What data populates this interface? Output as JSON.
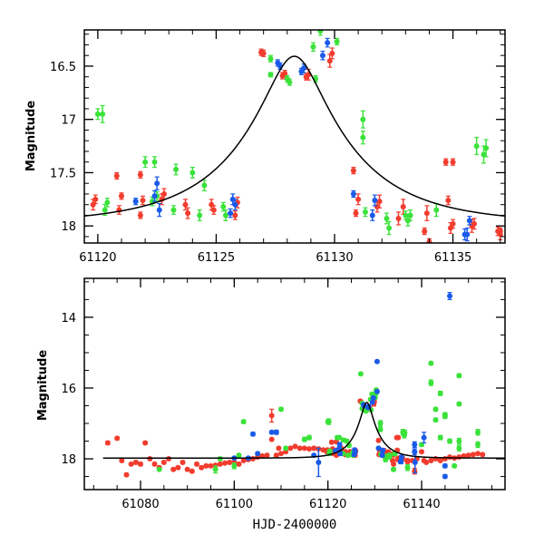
{
  "chart_data": [
    {
      "type": "scatter",
      "title": "",
      "xlabel": "",
      "ylabel": "Magnitude",
      "xlim": [
        61119.43,
        61137.2
      ],
      "ylim": [
        18.16,
        16.16
      ],
      "y_inverted": true,
      "xticks": [
        61120,
        61125,
        61130,
        61135
      ],
      "xtick_labels": [
        "61120",
        "61125",
        "61130",
        "61135"
      ],
      "yticks": [
        16.5,
        17,
        17.5,
        18
      ],
      "ytick_labels": [
        "16.5",
        "17",
        "17.5",
        "18"
      ],
      "x_minor_step": 1,
      "y_minor_step": 0.1,
      "grid": false,
      "legend": "none"
    },
    {
      "type": "scatter",
      "title": "",
      "xlabel": "HJD-2400000",
      "ylabel": "Magnitude",
      "xlim": [
        61068,
        61157.8
      ],
      "ylim": [
        18.87,
        12.9
      ],
      "y_inverted": true,
      "xticks": [
        61080,
        61100,
        61120,
        61140
      ],
      "xtick_labels": [
        "61080",
        "61100",
        "61120",
        "61140"
      ],
      "yticks": [
        14,
        16,
        18
      ],
      "ytick_labels": [
        "14",
        "16",
        "18"
      ],
      "x_minor_step": 5,
      "y_minor_step": 0.5,
      "grid": false,
      "legend": "none"
    }
  ],
  "model": {
    "name": "Paczynski fit",
    "t0": 61128.3,
    "u0": 0.24,
    "tE": 4.7,
    "baseline_mag": 17.98,
    "color": "#000000"
  },
  "series": [
    {
      "name": "red",
      "color": "#f23c2e",
      "points": [
        [
          61119.8,
          17.8,
          0.05
        ],
        [
          61119.9,
          17.75,
          0.04
        ],
        [
          61120.9,
          17.85,
          0.04
        ],
        [
          61121.0,
          17.72,
          0.03
        ],
        [
          61120.8,
          17.53,
          0.03
        ],
        [
          61121.8,
          17.9,
          0.03
        ],
        [
          61121.9,
          17.76,
          0.04
        ],
        [
          61121.8,
          17.52,
          0.03
        ],
        [
          61122.7,
          17.75,
          0.05
        ],
        [
          61122.8,
          17.7,
          0.05
        ],
        [
          61123.7,
          17.8,
          0.05
        ],
        [
          61123.8,
          17.88,
          0.05
        ],
        [
          61124.8,
          17.8,
          0.05
        ],
        [
          61124.9,
          17.85,
          0.04
        ],
        [
          61125.9,
          17.78,
          0.05
        ],
        [
          61125.8,
          17.9,
          0.04
        ],
        [
          61126.9,
          16.37,
          0.03
        ],
        [
          61127.0,
          16.38,
          0.03
        ],
        [
          61127.8,
          16.59,
          0.03
        ],
        [
          61127.9,
          16.57,
          0.03
        ],
        [
          61128.9,
          16.58,
          0.05
        ],
        [
          61128.8,
          16.6,
          0.03
        ],
        [
          61129.8,
          16.45,
          0.06
        ],
        [
          61129.9,
          16.38,
          0.05
        ],
        [
          61130.8,
          17.48,
          0.03
        ],
        [
          61130.9,
          17.88,
          0.03
        ],
        [
          61131.0,
          17.75,
          0.05
        ],
        [
          61131.8,
          17.82,
          0.05
        ],
        [
          61131.9,
          17.77,
          0.06
        ],
        [
          61132.7,
          17.93,
          0.06
        ],
        [
          61132.9,
          17.82,
          0.07
        ],
        [
          61133.8,
          18.05,
          0.03
        ],
        [
          61133.9,
          17.88,
          0.07
        ],
        [
          61134.7,
          17.4,
          0.03
        ],
        [
          61134.8,
          17.76,
          0.04
        ],
        [
          61134.9,
          18.02,
          0.05
        ],
        [
          61135.0,
          17.98,
          0.04
        ],
        [
          61135.8,
          18.0,
          0.06
        ],
        [
          61135.9,
          17.98,
          0.05
        ],
        [
          61136.9,
          18.05,
          0.04
        ],
        [
          61137.0,
          18.08,
          0.05
        ],
        [
          61073,
          17.55,
          0.05
        ],
        [
          61075,
          17.42,
          0.04
        ],
        [
          61076,
          18.05,
          0.04
        ],
        [
          61078,
          18.15,
          0.03
        ],
        [
          61077,
          18.45,
          0.04
        ],
        [
          61079,
          18.1,
          0.05
        ],
        [
          61080,
          18.15,
          0.05
        ],
        [
          61081,
          17.55,
          0.04
        ],
        [
          61082,
          18.0,
          0.03
        ],
        [
          61083,
          18.15,
          0.04
        ],
        [
          61084,
          18.25,
          0.04
        ],
        [
          61085,
          18.1,
          0.04
        ],
        [
          61086,
          18.0,
          0.03
        ],
        [
          61087,
          18.3,
          0.04
        ],
        [
          61088,
          18.25,
          0.04
        ],
        [
          61089,
          18.1,
          0.04
        ],
        [
          61090,
          18.3,
          0.04
        ],
        [
          61091,
          18.35,
          0.04
        ],
        [
          61092,
          18.15,
          0.04
        ],
        [
          61093,
          18.25,
          0.04
        ],
        [
          61094,
          18.2,
          0.03
        ],
        [
          61095,
          18.2,
          0.03
        ],
        [
          61096,
          18.18,
          0.03
        ],
        [
          61097,
          18.15,
          0.03
        ],
        [
          61098,
          18.12,
          0.03
        ],
        [
          61099,
          18.1,
          0.03
        ],
        [
          61100,
          18.1,
          0.04
        ],
        [
          61101,
          18.15,
          0.04
        ],
        [
          61102,
          18.05,
          0.03
        ],
        [
          61103,
          18.02,
          0.03
        ],
        [
          61104,
          18.0,
          0.03
        ],
        [
          61105,
          17.95,
          0.03
        ],
        [
          61106,
          17.92,
          0.03
        ],
        [
          61107,
          17.9,
          0.03
        ],
        [
          61108,
          16.78,
          0.18
        ],
        [
          61108,
          17.45,
          0.03
        ],
        [
          61109,
          17.9,
          0.03
        ],
        [
          61109.5,
          17.7,
          0.03
        ],
        [
          61110,
          17.85,
          0.03
        ],
        [
          61111,
          17.8,
          0.03
        ],
        [
          61112,
          17.7,
          0.03
        ],
        [
          61113,
          17.65,
          0.03
        ],
        [
          61114,
          17.7,
          0.03
        ],
        [
          61115,
          17.7,
          0.03
        ],
        [
          61116,
          17.72,
          0.03
        ],
        [
          61117,
          17.7,
          0.03
        ],
        [
          61118,
          17.72,
          0.03
        ],
        [
          61119,
          17.75,
          0.03
        ],
        [
          61135,
          17.4,
          0.03
        ],
        [
          61134,
          18.15,
          0.03
        ],
        [
          61138.5,
          18.35,
          0.08
        ],
        [
          61140,
          17.8,
          0.03
        ],
        [
          61137,
          18.05,
          0.03
        ],
        [
          61138,
          18.05,
          0.03
        ],
        [
          61139,
          18.0,
          0.03
        ],
        [
          61140.5,
          18.05,
          0.03
        ],
        [
          61141,
          18.1,
          0.03
        ],
        [
          61142,
          18.05,
          0.03
        ],
        [
          61143,
          18.0,
          0.03
        ],
        [
          61144,
          18.05,
          0.03
        ],
        [
          61145,
          18.0,
          0.03
        ],
        [
          61146,
          17.95,
          0.03
        ],
        [
          61147,
          17.98,
          0.03
        ],
        [
          61148,
          17.95,
          0.03
        ],
        [
          61149,
          17.92,
          0.03
        ],
        [
          61150,
          17.9,
          0.03
        ],
        [
          61151,
          17.88,
          0.03
        ],
        [
          61152,
          17.85,
          0.03
        ],
        [
          61153,
          17.88,
          0.03
        ]
      ]
    },
    {
      "name": "green",
      "color": "#3ae23a",
      "points": [
        [
          61120.2,
          16.95,
          0.08
        ],
        [
          61120.3,
          17.85,
          0.05
        ],
        [
          61120.4,
          17.78,
          0.04
        ],
        [
          61122.4,
          17.4,
          0.05
        ],
        [
          61122.3,
          17.77,
          0.04
        ],
        [
          61122.5,
          17.72,
          0.04
        ],
        [
          61123.2,
          17.85,
          0.04
        ],
        [
          61123.3,
          17.47,
          0.05
        ],
        [
          61124.3,
          17.9,
          0.05
        ],
        [
          61124.5,
          17.62,
          0.05
        ],
        [
          61125.3,
          17.82,
          0.04
        ],
        [
          61125.4,
          17.9,
          0.05
        ],
        [
          61127.3,
          16.43,
          0.03
        ],
        [
          61127.3,
          16.58,
          0.02
        ],
        [
          61128.0,
          16.62,
          0.03
        ],
        [
          61128.1,
          16.65,
          0.03
        ],
        [
          61129.2,
          16.62,
          0.03
        ],
        [
          61129.1,
          16.32,
          0.04
        ],
        [
          61129.4,
          16.17,
          0.04
        ],
        [
          61130.1,
          16.27,
          0.03
        ],
        [
          61130.3,
          16.14,
          0.02
        ],
        [
          61131.2,
          17.0,
          0.08
        ],
        [
          61131.2,
          17.17,
          0.06
        ],
        [
          61131.3,
          17.87,
          0.04
        ],
        [
          61132.2,
          17.93,
          0.05
        ],
        [
          61132.3,
          18.02,
          0.06
        ],
        [
          61133.1,
          17.95,
          0.05
        ],
        [
          61133.2,
          17.9,
          0.05
        ],
        [
          61134.3,
          17.85,
          0.06
        ],
        [
          61136.3,
          17.33,
          0.08
        ],
        [
          61136.4,
          17.27,
          0.08
        ],
        [
          61084,
          18.3,
          0.03
        ],
        [
          61096,
          18.3,
          0.1
        ],
        [
          61097,
          18.0,
          0.05
        ],
        [
          61100,
          18.2,
          0.08
        ],
        [
          61101,
          17.9,
          0.04
        ],
        [
          61102,
          16.95,
          0.05
        ],
        [
          61110,
          16.6,
          0.05
        ],
        [
          61111,
          17.7,
          0.03
        ],
        [
          61115,
          17.45,
          0.06
        ],
        [
          61116,
          17.4,
          0.06
        ],
        [
          61120,
          16.95,
          0.05
        ],
        [
          61122,
          17.4,
          0.05
        ],
        [
          61124,
          17.5,
          0.05
        ],
        [
          61127,
          15.6,
          0.03
        ],
        [
          61130.3,
          16.05,
          0.03
        ],
        [
          61133,
          17.9,
          0.04
        ],
        [
          61134,
          18.3,
          0.05
        ],
        [
          61136,
          17.25,
          0.08
        ],
        [
          61137,
          18.25,
          0.08
        ],
        [
          61140,
          17.6,
          0.05
        ],
        [
          61142,
          15.3,
          0.04
        ],
        [
          61142,
          15.85,
          0.08
        ],
        [
          61143,
          16.6,
          0.05
        ],
        [
          61143,
          16.9,
          0.05
        ],
        [
          61144,
          17.4,
          0.06
        ],
        [
          61144,
          16.15,
          0.06
        ],
        [
          61145,
          16.75,
          0.05
        ],
        [
          61145,
          16.8,
          0.06
        ],
        [
          61146,
          17.5,
          0.06
        ],
        [
          61147,
          18.2,
          0.04
        ],
        [
          61148,
          15.65,
          0.05
        ],
        [
          61148,
          16.45,
          0.05
        ],
        [
          61148,
          17.5,
          0.08
        ],
        [
          61148,
          17.7,
          0.08
        ],
        [
          61152,
          17.25,
          0.08
        ],
        [
          61152,
          17.6,
          0.08
        ]
      ]
    },
    {
      "name": "blue",
      "color": "#1a5ae8",
      "points": [
        [
          61121.6,
          17.77,
          0.03
        ],
        [
          61122.5,
          17.6,
          0.06
        ],
        [
          61122.4,
          17.72,
          0.05
        ],
        [
          61122.6,
          17.85,
          0.06
        ],
        [
          61125.6,
          17.88,
          0.04
        ],
        [
          61125.7,
          17.75,
          0.05
        ],
        [
          61125.8,
          17.8,
          0.05
        ],
        [
          61127.6,
          16.47,
          0.03
        ],
        [
          61127.7,
          16.5,
          0.03
        ],
        [
          61128.6,
          16.55,
          0.03
        ],
        [
          61128.7,
          16.52,
          0.04
        ],
        [
          61129.5,
          16.4,
          0.04
        ],
        [
          61129.7,
          16.28,
          0.04
        ],
        [
          61130.8,
          17.7,
          0.03
        ],
        [
          61131.6,
          17.9,
          0.05
        ],
        [
          61131.7,
          17.76,
          0.05
        ],
        [
          61135.6,
          18.08,
          0.06
        ],
        [
          61135.7,
          17.95,
          0.04
        ],
        [
          61135.5,
          18.08,
          0.05
        ],
        [
          61100,
          17.98,
          0.03
        ],
        [
          61103,
          17.98,
          0.03
        ],
        [
          61104,
          17.3,
          0.05
        ],
        [
          61105,
          17.85,
          0.03
        ],
        [
          61108,
          17.25,
          0.04
        ],
        [
          61109,
          17.25,
          0.06
        ],
        [
          61117,
          17.9,
          0.03
        ],
        [
          61118,
          18.1,
          0.4
        ],
        [
          61130.5,
          15.25,
          0.03
        ],
        [
          61130.5,
          16.1,
          0.03
        ],
        [
          61138.5,
          17.6,
          0.08
        ],
        [
          61138.5,
          17.8,
          0.08
        ],
        [
          61138.6,
          18.1,
          0.3
        ],
        [
          61140.5,
          17.4,
          0.15
        ],
        [
          61145,
          18.2,
          0.05
        ],
        [
          61145,
          18.5,
          0.05
        ],
        [
          61146,
          13.4,
          0.1
        ]
      ]
    }
  ]
}
